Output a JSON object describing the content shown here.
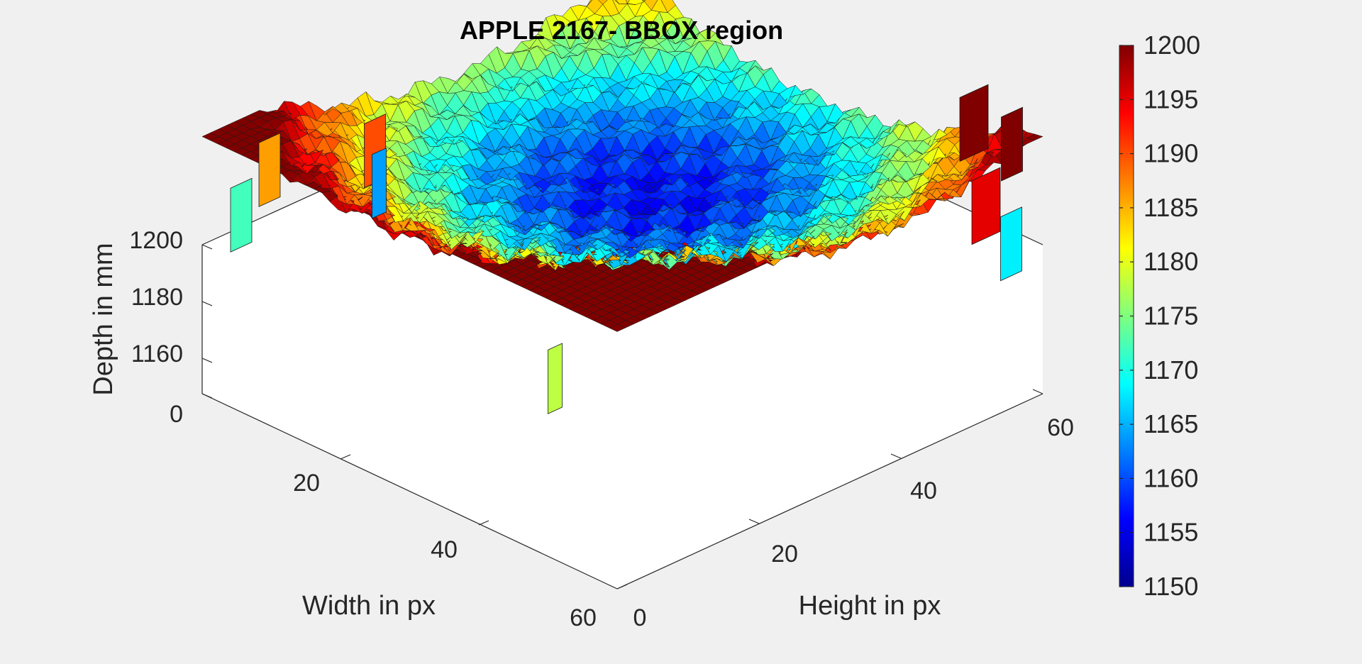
{
  "chart_data": {
    "type": "surface3d",
    "title": "APPLE 2167- BBOX region",
    "xlabel": "Width in px",
    "ylabel": "Height in px",
    "zlabel": "Depth in mm",
    "x_ticks": [
      "0",
      "20",
      "40",
      "60"
    ],
    "y_ticks": [
      "0",
      "20",
      "40",
      "60"
    ],
    "z_ticks": [
      "1160",
      "1180",
      "1200"
    ],
    "x_range": [
      0,
      60
    ],
    "y_range": [
      0,
      60
    ],
    "z_range": [
      1150,
      1200
    ],
    "colorbar": {
      "ticks": [
        "1150",
        "1155",
        "1160",
        "1165",
        "1170",
        "1175",
        "1180",
        "1185",
        "1190",
        "1195",
        "1200"
      ],
      "range": [
        1150,
        1200
      ],
      "colormap": "jet"
    },
    "surface_description": "Bowl-shaped depth map: deep center around 1158 mm, rising rim up to ~1200 mm near the width-left/height-low corner; vertical drop-off walls at the boundary where values drop to 0.",
    "center_depth": 1158,
    "rim_max_depth": 1200,
    "outlier_depth": 0
  },
  "colors": {
    "jet_low": "#00008f",
    "jet_mid": "#00ffff",
    "jet_high": "#800000",
    "background": "#f0f0f0",
    "axes_face": "#ffffff"
  }
}
